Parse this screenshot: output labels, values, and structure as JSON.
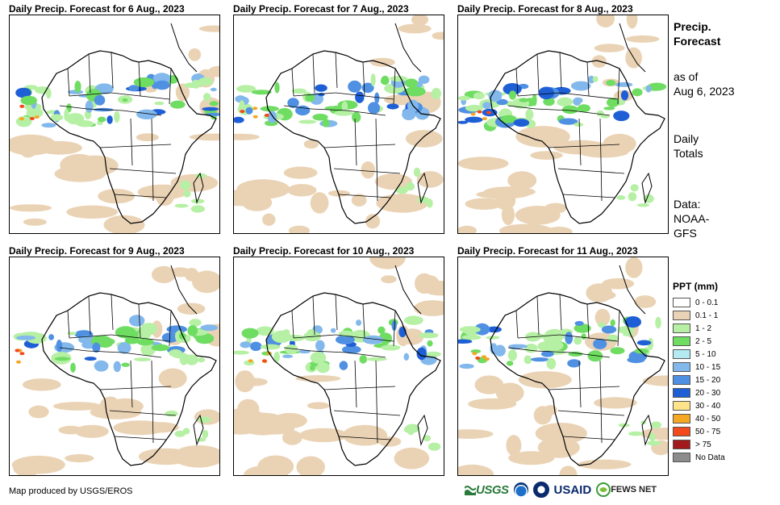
{
  "panels": [
    {
      "title": "Daily Precip. Forecast for 6 Aug., 2023"
    },
    {
      "title": "Daily Precip. Forecast for 7 Aug., 2023"
    },
    {
      "title": "Daily Precip. Forecast for 8 Aug., 2023"
    },
    {
      "title": "Daily Precip. Forecast for 9 Aug., 2023"
    },
    {
      "title": "Daily Precip. Forecast for 10 Aug., 2023"
    },
    {
      "title": "Daily Precip. Forecast for 11 Aug., 2023"
    }
  ],
  "sidebar": {
    "title_line1": "Precip.",
    "title_line2": "Forecast",
    "asof_line1": "as of",
    "asof_line2": "Aug 6, 2023",
    "totals_line1": "Daily",
    "totals_line2": "Totals",
    "data_line1": "Data:",
    "data_line2": "NOAA-",
    "data_line3": "GFS"
  },
  "legend": {
    "title": "PPT (mm)",
    "items": [
      {
        "label": "0 - 0.1",
        "color": "#ffffff"
      },
      {
        "label": "0.1 - 1",
        "color": "#ead3b5"
      },
      {
        "label": "1 - 2",
        "color": "#b6f0a4"
      },
      {
        "label": "2 - 5",
        "color": "#6fdc62"
      },
      {
        "label": "5 - 10",
        "color": "#b4eaf2"
      },
      {
        "label": "10 - 15",
        "color": "#82b8ec"
      },
      {
        "label": "15 - 20",
        "color": "#4f90e3"
      },
      {
        "label": "20 - 30",
        "color": "#1f5fd6"
      },
      {
        "label": "30 - 40",
        "color": "#fde38a"
      },
      {
        "label": "40 - 50",
        "color": "#f5a623"
      },
      {
        "label": "50 - 75",
        "color": "#f24a1c"
      },
      {
        "label": "> 75",
        "color": "#a21a1a"
      },
      {
        "label": "No Data",
        "color": "#8c8c8c"
      }
    ]
  },
  "footer": {
    "credit": "Map produced by USGS/EROS"
  },
  "logos": {
    "usgs": "USGS",
    "usaid": "USAID",
    "fews": "FEWS NET"
  }
}
